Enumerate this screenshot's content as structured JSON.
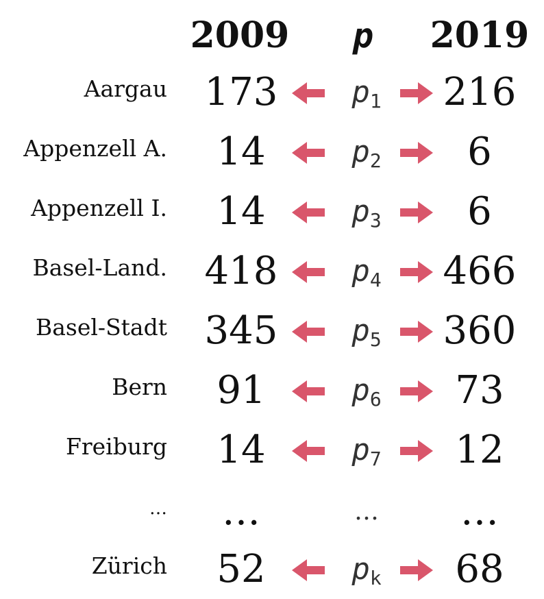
{
  "header": {
    "col_2009": "2009",
    "col_p": "p",
    "col_2019": "2019"
  },
  "colors": {
    "arrow": "#d9566b"
  },
  "rows": [
    {
      "name": "Aargau",
      "v2009": "173",
      "p": "p",
      "sub": "1",
      "v2019": "216"
    },
    {
      "name": "Appenzell A.",
      "v2009": "14",
      "p": "p",
      "sub": "2",
      "v2019": "6"
    },
    {
      "name": "Appenzell I.",
      "v2009": "14",
      "p": "p",
      "sub": "3",
      "v2019": "6"
    },
    {
      "name": "Basel-Land.",
      "v2009": "418",
      "p": "p",
      "sub": "4",
      "v2019": "466"
    },
    {
      "name": "Basel-Stadt",
      "v2009": "345",
      "p": "p",
      "sub": "5",
      "v2019": "360"
    },
    {
      "name": "Bern",
      "v2009": "91",
      "p": "p",
      "sub": "6",
      "v2019": "73"
    },
    {
      "name": "Freiburg",
      "v2009": "14",
      "p": "p",
      "sub": "7",
      "v2019": "12"
    },
    {
      "name": "…",
      "v2009": "…",
      "p": "…",
      "v2019": "…"
    },
    {
      "name": "Zürich",
      "v2009": "52",
      "p": "p",
      "sub": "k",
      "v2019": "68"
    }
  ]
}
